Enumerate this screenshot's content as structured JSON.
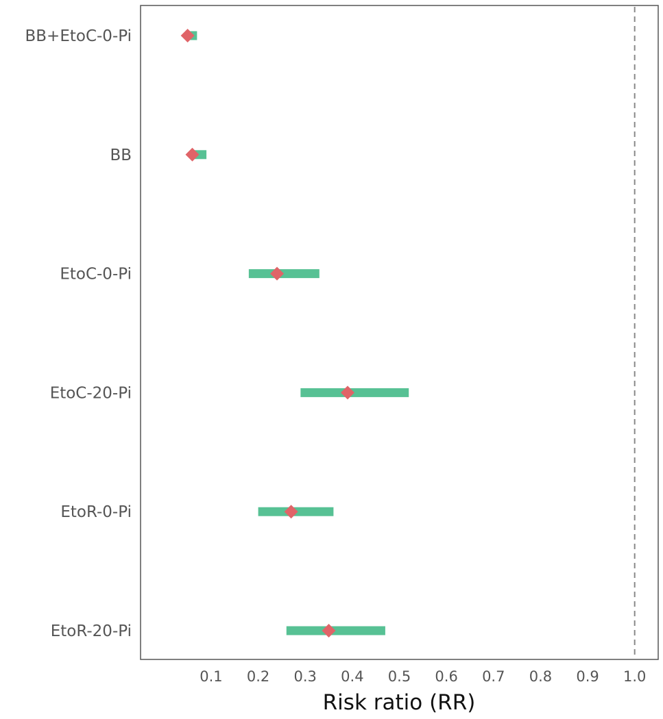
{
  "chart_data": {
    "type": "forest",
    "xlabel": "Risk ratio (RR)",
    "xlim": [
      -0.05,
      1.05
    ],
    "xticks": [
      "0.1",
      "0.2",
      "0.3",
      "0.4",
      "0.5",
      "0.6",
      "0.7",
      "0.8",
      "0.9",
      "1.0"
    ],
    "reference_line": 1.0,
    "categories": [
      "BB+EtoC-0-Pi",
      "BB",
      "EtoC-0-Pi",
      "EtoC-20-Pi",
      "EtoR-0-Pi",
      "EtoR-20-Pi"
    ],
    "estimates": [
      0.05,
      0.06,
      0.24,
      0.39,
      0.27,
      0.35
    ],
    "ci_lower": [
      0.05,
      0.06,
      0.18,
      0.29,
      0.2,
      0.26
    ],
    "ci_upper": [
      0.07,
      0.09,
      0.33,
      0.52,
      0.36,
      0.47
    ],
    "colors": {
      "ci": "#57c194",
      "point": "#e06468",
      "ref_line": "#888888",
      "frame": "#555555"
    }
  }
}
